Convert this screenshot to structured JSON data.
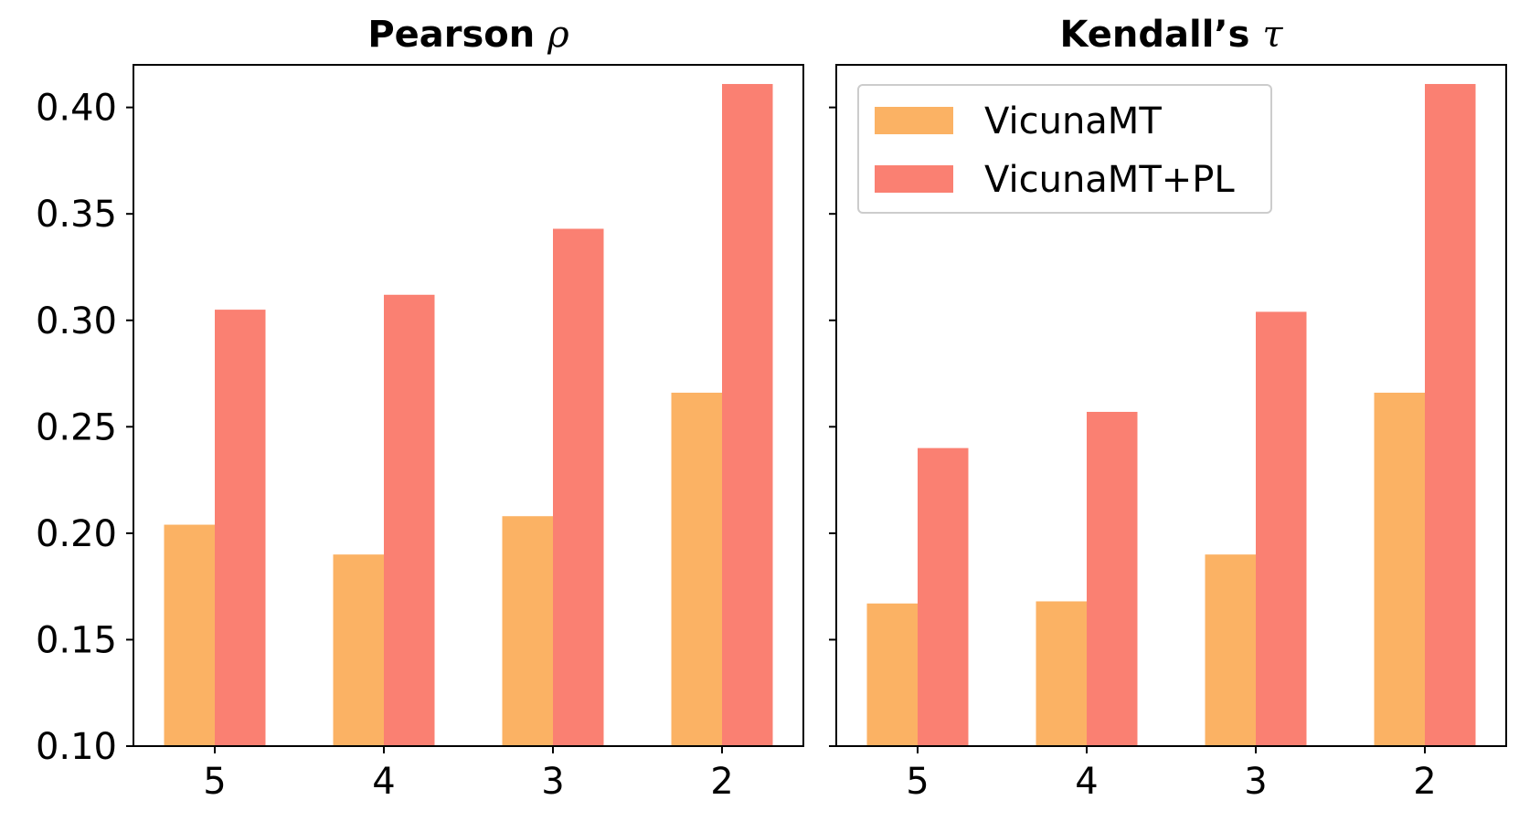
{
  "chart_data": [
    {
      "type": "bar",
      "title": "Pearson",
      "title_symbol": "ρ",
      "categories": [
        "5",
        "4",
        "3",
        "2"
      ],
      "series": [
        {
          "name": "VicunaMT",
          "color": "#fbb264",
          "values": [
            0.204,
            0.19,
            0.208,
            0.266
          ]
        },
        {
          "name": "VicunaMT+PL",
          "color": "#fa8072",
          "values": [
            0.305,
            0.312,
            0.343,
            0.411
          ]
        }
      ],
      "ylim": [
        0.1,
        0.42
      ],
      "yticks": [
        "0.10",
        "0.15",
        "0.20",
        "0.25",
        "0.30",
        "0.35",
        "0.40"
      ],
      "show_ytick_labels": true,
      "legend": "none"
    },
    {
      "type": "bar",
      "title": "Kendall’s",
      "title_symbol": "τ",
      "categories": [
        "5",
        "4",
        "3",
        "2"
      ],
      "series": [
        {
          "name": "VicunaMT",
          "color": "#fbb264",
          "values": [
            0.167,
            0.168,
            0.19,
            0.266
          ]
        },
        {
          "name": "VicunaMT+PL",
          "color": "#fa8072",
          "values": [
            0.24,
            0.257,
            0.304,
            0.411
          ]
        }
      ],
      "ylim": [
        0.1,
        0.42
      ],
      "yticks": [
        "0.10",
        "0.15",
        "0.20",
        "0.25",
        "0.30",
        "0.35",
        "0.40"
      ],
      "show_ytick_labels": false,
      "legend": "top-left"
    }
  ]
}
